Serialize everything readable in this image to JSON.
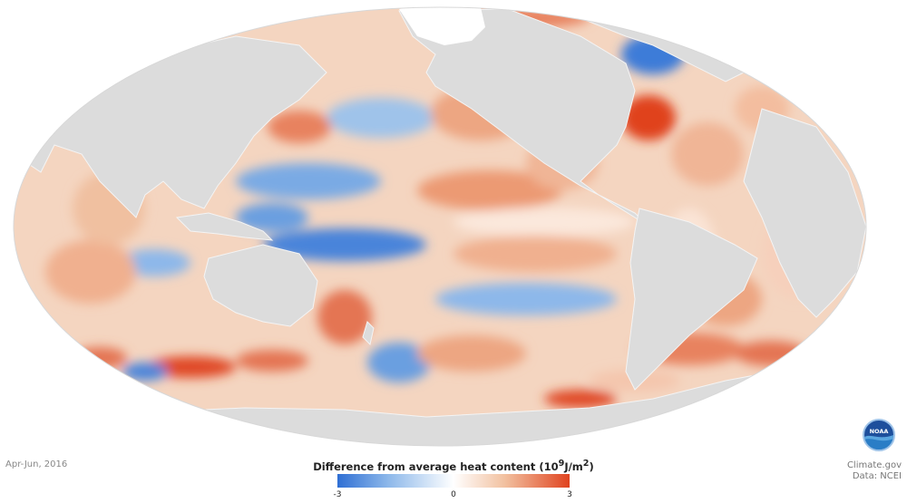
{
  "date_label": "Apr-Jun, 2016",
  "legend": {
    "title": "Difference from average heat content (10",
    "title_sup": "9",
    "title_unit_tail": "J/m",
    "title_sup2": "2",
    "title_close": ")",
    "min_label": "-3",
    "mid_label": "0",
    "max_label": "3",
    "colors": {
      "low": "#2f6fd4",
      "mid": "#ffffff",
      "high": "#e0431f"
    }
  },
  "credits": {
    "site": "Climate.gov",
    "data_source": "Data: NCEI"
  },
  "logo": {
    "text": "NOAA"
  },
  "map": {
    "projection": "Mollweide",
    "land_color": "#dcdcdc",
    "ocean_base": "#f4d5c0"
  }
}
